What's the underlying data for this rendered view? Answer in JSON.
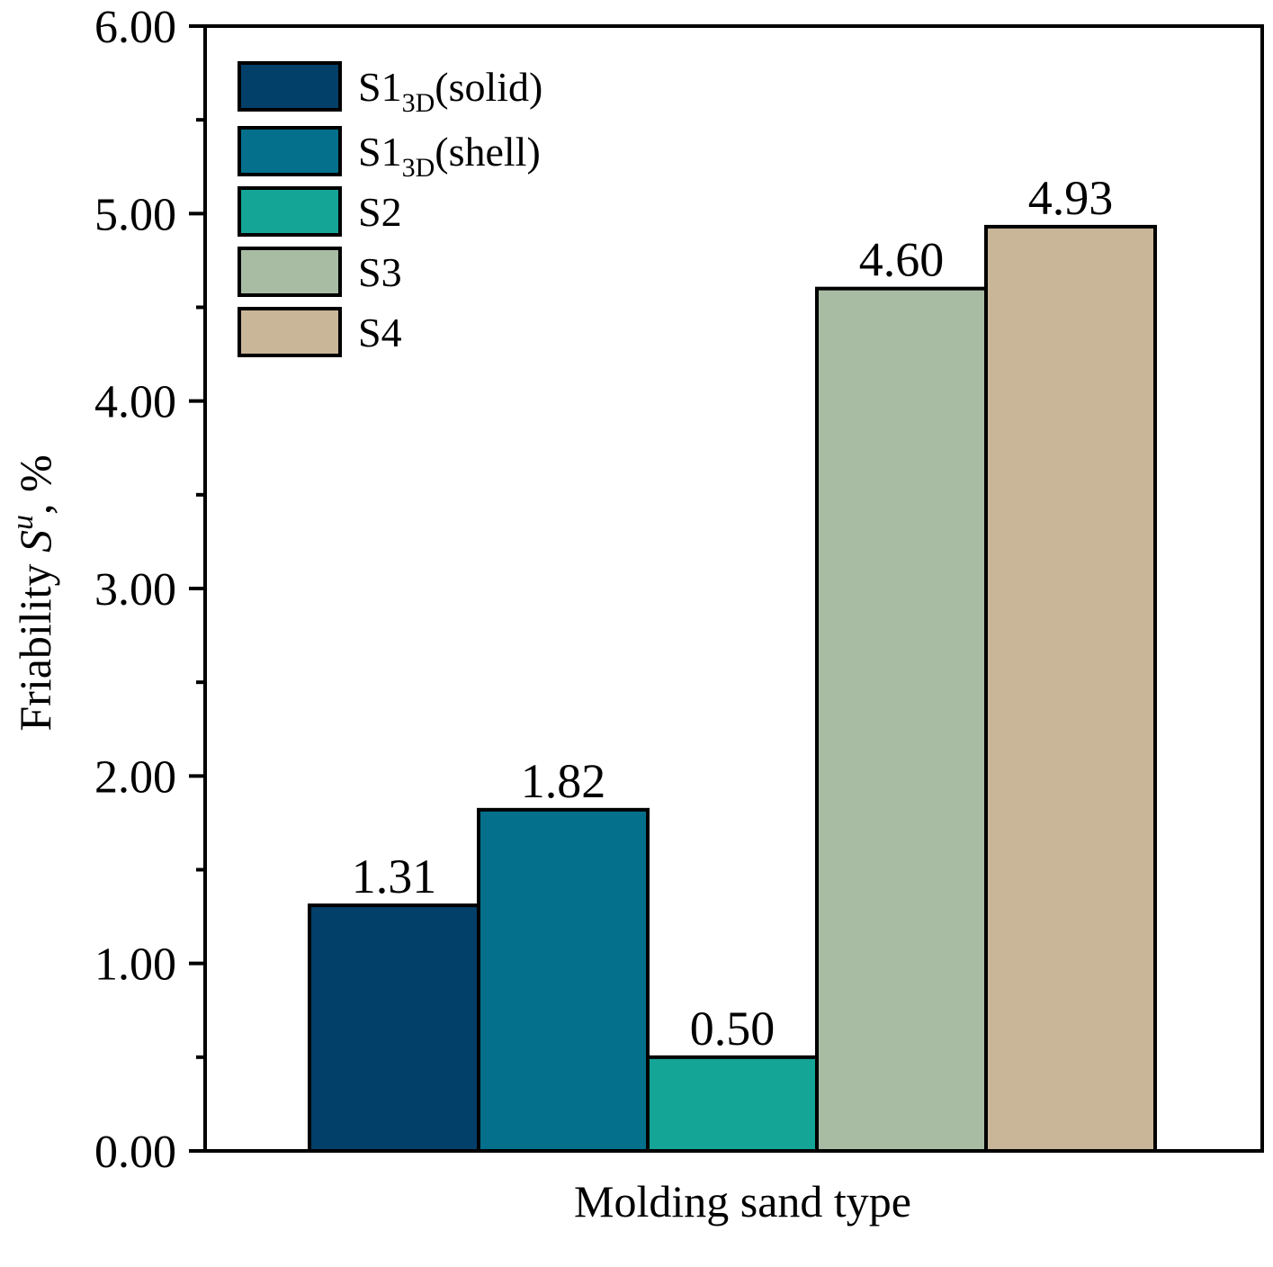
{
  "chart_data": {
    "type": "bar",
    "title": "",
    "xlabel": "Molding sand type",
    "ylabel": {
      "prefix": "Friability ",
      "symbol": "S",
      "superscript": "u",
      "suffix": ", %"
    },
    "ylim": [
      0,
      6
    ],
    "yticks": [
      "0.00",
      "1.00",
      "2.00",
      "3.00",
      "4.00",
      "5.00",
      "6.00"
    ],
    "y_minor_step": 0.5,
    "grid": false,
    "legend_position": "top-left",
    "series": [
      {
        "name": "S1",
        "subscript": "3D",
        "suffix": "(solid)",
        "value": 1.31,
        "label": "1.31",
        "color": "#023f69"
      },
      {
        "name": "S1",
        "subscript": "3D",
        "suffix": "(shell)",
        "value": 1.82,
        "label": "1.82",
        "color": "#04708c"
      },
      {
        "name": "S2",
        "subscript": "",
        "suffix": "",
        "value": 0.5,
        "label": "0.50",
        "color": "#14a597"
      },
      {
        "name": "S3",
        "subscript": "",
        "suffix": "",
        "value": 4.6,
        "label": "4.60",
        "color": "#a8bca4"
      },
      {
        "name": "S4",
        "subscript": "",
        "suffix": "",
        "value": 4.93,
        "label": "4.93",
        "color": "#c9b699"
      }
    ]
  }
}
